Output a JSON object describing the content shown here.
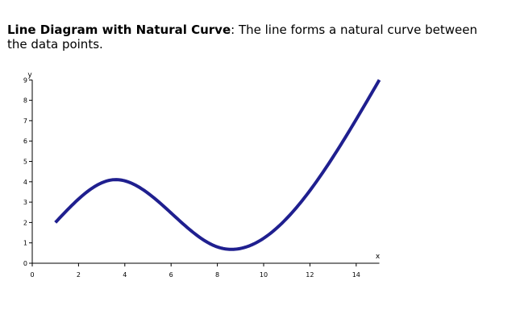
{
  "caption": {
    "title": "Line Diagram with Natural Curve",
    "separator": ": ",
    "text": "The line forms a natural curve between the data points."
  },
  "chart_data": {
    "type": "line",
    "title": "",
    "xlabel": "x",
    "ylabel": "y",
    "xlim": [
      0,
      15
    ],
    "ylim": [
      0,
      9
    ],
    "x_ticks": [
      0,
      2,
      4,
      6,
      8,
      10,
      12,
      14
    ],
    "y_ticks": [
      0,
      1,
      2,
      3,
      4,
      5,
      6,
      7,
      8,
      9
    ],
    "grid": false,
    "interpolation": "natural",
    "series": [
      {
        "color": "#1f1f8f",
        "x": [
          1,
          3.5,
          8,
          15
        ],
        "y": [
          2,
          4.1,
          0.8,
          9
        ]
      }
    ]
  }
}
